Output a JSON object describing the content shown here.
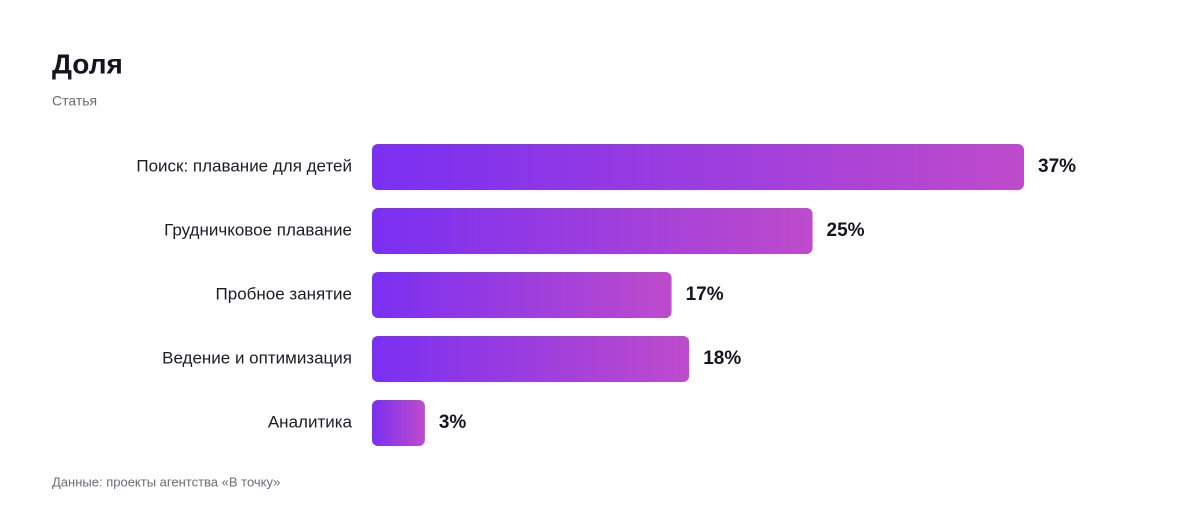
{
  "chart_data": {
    "type": "bar",
    "orientation": "horizontal",
    "title": "Доля",
    "subtitle": "Статья",
    "categories": [
      "Поиск: плавание для детей",
      "Грудничковое плавание",
      "Пробное занятие",
      "Ведение и оптимизация",
      "Аналитика"
    ],
    "values": [
      37,
      25,
      17,
      18,
      3
    ],
    "value_labels": [
      "37%",
      "25%",
      "17%",
      "18%",
      "3%"
    ],
    "gradient": [
      "#7a2ff2",
      "#be4bcb"
    ],
    "source": "Данные: проекты агентства «В точку»"
  }
}
